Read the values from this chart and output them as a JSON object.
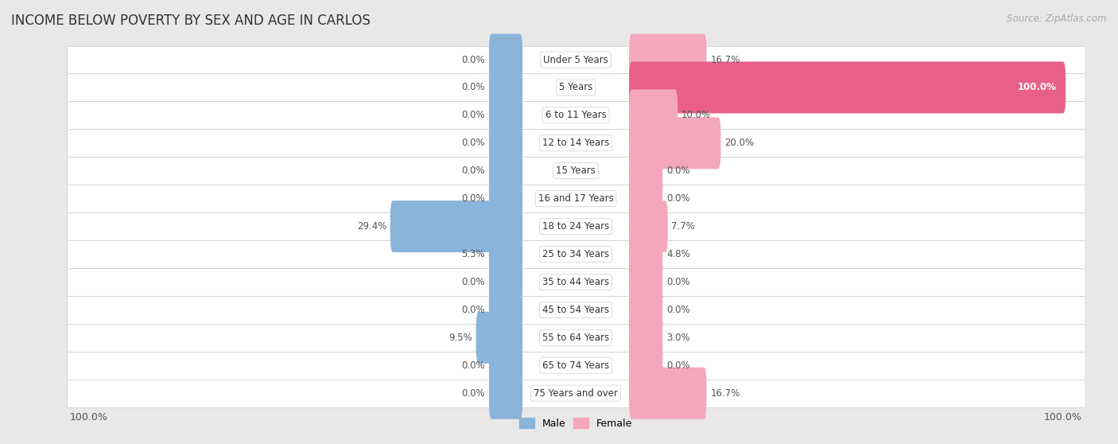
{
  "title": "INCOME BELOW POVERTY BY SEX AND AGE IN CARLOS",
  "source": "Source: ZipAtlas.com",
  "categories": [
    "Under 5 Years",
    "5 Years",
    "6 to 11 Years",
    "12 to 14 Years",
    "15 Years",
    "16 and 17 Years",
    "18 to 24 Years",
    "25 to 34 Years",
    "35 to 44 Years",
    "45 to 54 Years",
    "55 to 64 Years",
    "65 to 74 Years",
    "75 Years and over"
  ],
  "male": [
    0.0,
    0.0,
    0.0,
    0.0,
    0.0,
    0.0,
    29.4,
    5.3,
    0.0,
    0.0,
    9.5,
    0.0,
    0.0
  ],
  "female": [
    16.7,
    100.0,
    10.0,
    20.0,
    0.0,
    0.0,
    7.7,
    4.8,
    0.0,
    0.0,
    3.0,
    0.0,
    16.7
  ],
  "male_color": "#8ab4d9",
  "female_color": "#f4a7bc",
  "female_dark_color": "#e8608a",
  "bg_color": "#e8e8e8",
  "row_bg_color": "#f5f5f5",
  "row_alt_color": "#ececec",
  "max_val": 100.0,
  "min_bar_width": 6.5,
  "bar_height": 0.58,
  "title_fontsize": 12,
  "label_fontsize": 8.5,
  "cat_fontsize": 8.5,
  "tick_fontsize": 9,
  "source_fontsize": 8.5
}
